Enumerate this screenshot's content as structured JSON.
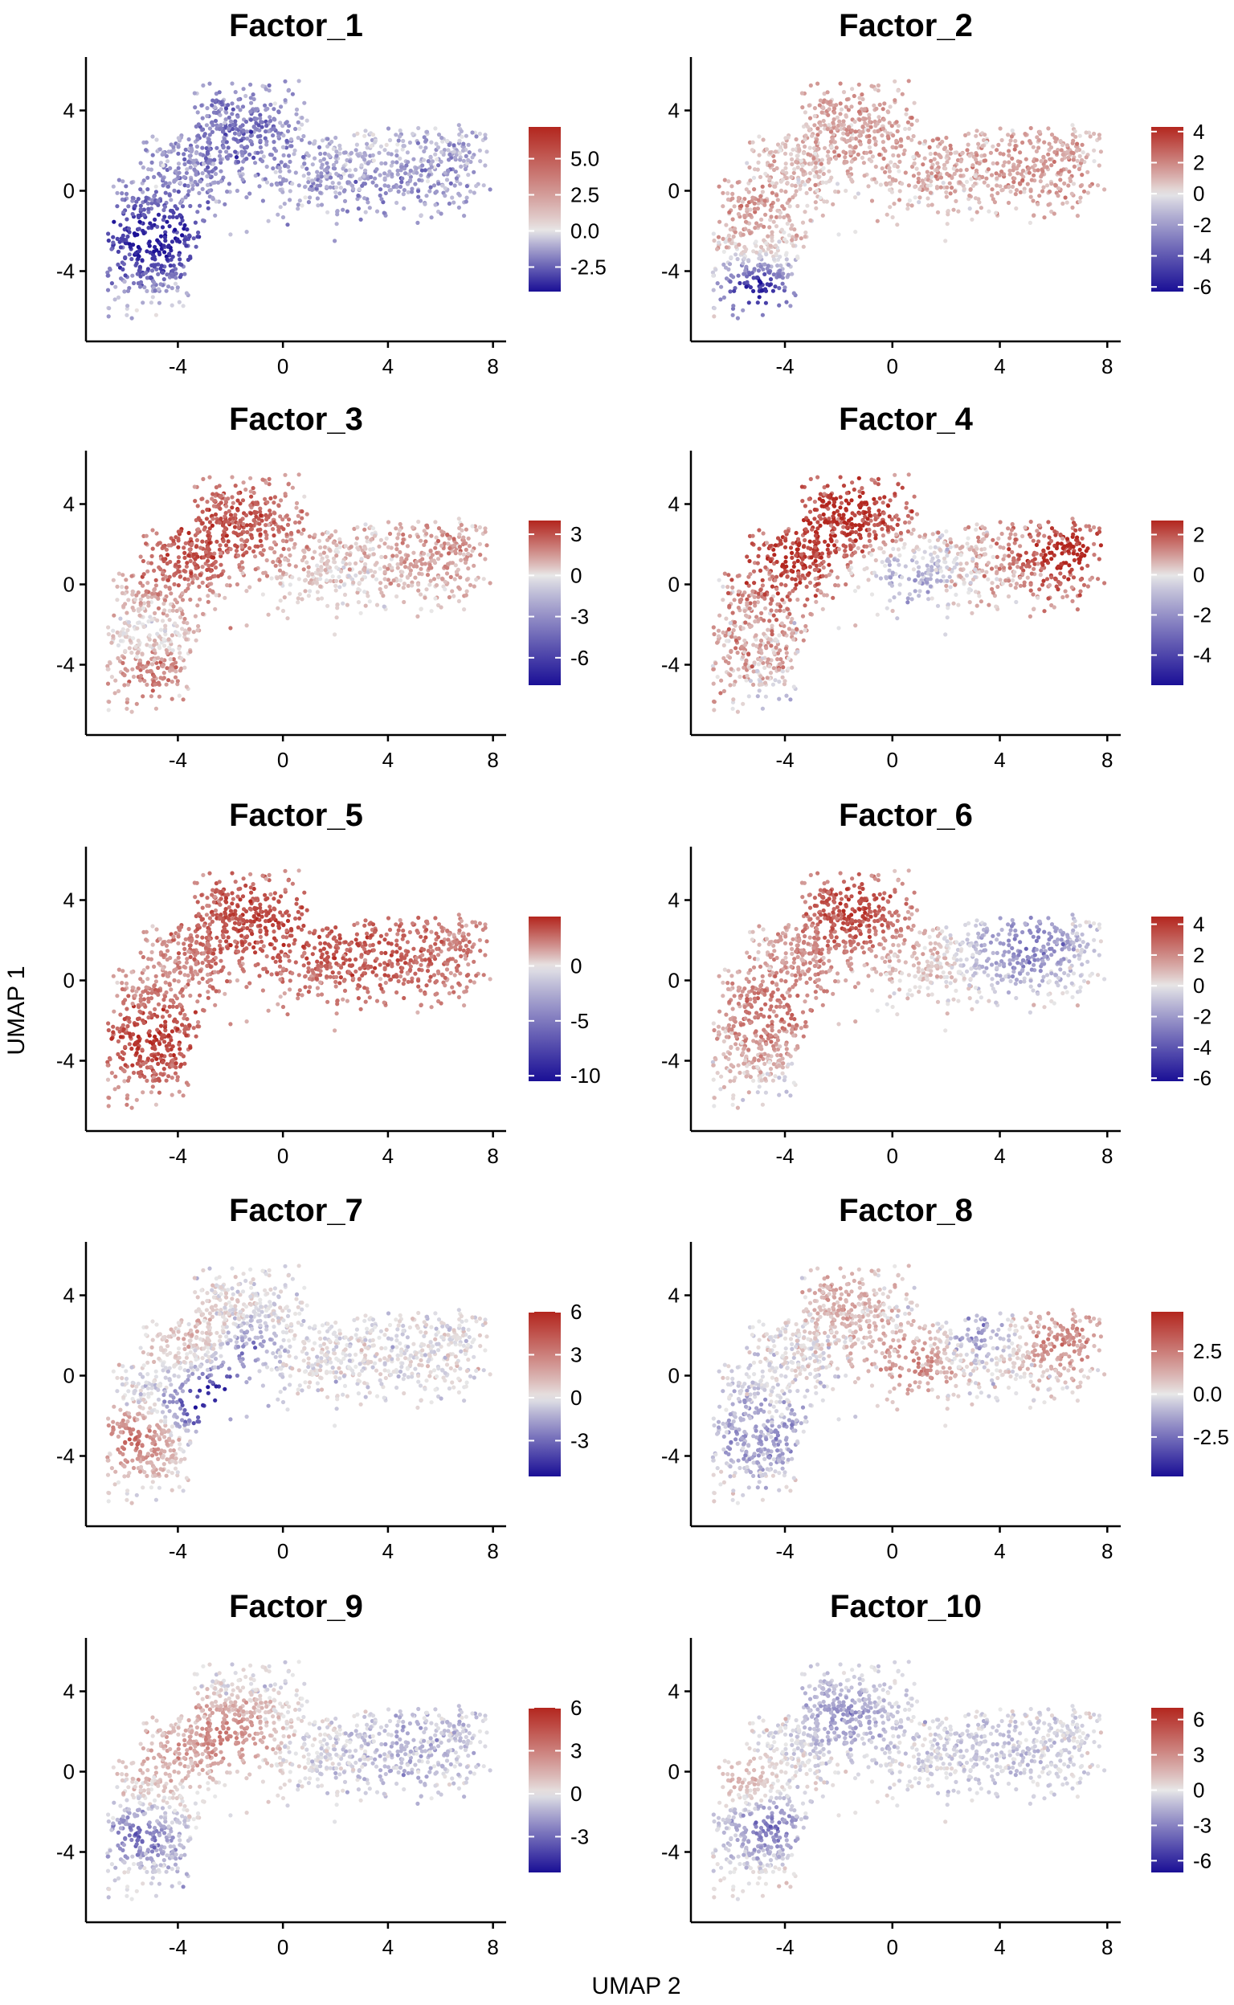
{
  "figure": {
    "xlabel": "UMAP 2",
    "ylabel": "UMAP 1"
  },
  "colorscale": {
    "low": "#1a0f96",
    "mid": "#e8e8e8",
    "high": "#b3261e"
  },
  "chart_data": [
    {
      "type": "scatter",
      "title": "Factor_1",
      "xlabel": "",
      "ylabel": "",
      "x_ticks": [
        -4,
        0,
        4,
        8
      ],
      "y_ticks": [
        4,
        0,
        -4
      ],
      "xlim": [
        -7.5,
        8.5
      ],
      "ylim": [
        -7.5,
        6.5
      ],
      "color_range": [
        -4.2,
        7.2
      ],
      "colorbar_ticks": [
        5.0,
        2.5,
        0.0,
        -2.5
      ],
      "colorbar_labels": [
        "5.0",
        "2.5",
        "0.0",
        "-2.5"
      ],
      "pattern": "f1"
    },
    {
      "type": "scatter",
      "title": "Factor_2",
      "xlabel": "",
      "ylabel": "",
      "x_ticks": [
        -4,
        0,
        4,
        8
      ],
      "y_ticks": [
        4,
        0,
        -4
      ],
      "xlim": [
        -7.5,
        8.5
      ],
      "ylim": [
        -7.5,
        6.5
      ],
      "color_range": [
        -6.3,
        4.3
      ],
      "colorbar_ticks": [
        4,
        2,
        0,
        -2,
        -4,
        -6
      ],
      "colorbar_labels": [
        "4",
        "2",
        "0",
        "-2",
        "-4",
        "-6"
      ],
      "pattern": "f2"
    },
    {
      "type": "scatter",
      "title": "Factor_3",
      "xlabel": "",
      "ylabel": "",
      "x_ticks": [
        -4,
        0,
        4,
        8
      ],
      "y_ticks": [
        4,
        0,
        -4
      ],
      "xlim": [
        -7.5,
        8.5
      ],
      "ylim": [
        -7.5,
        6.5
      ],
      "color_range": [
        -8.0,
        4.0
      ],
      "colorbar_ticks": [
        3,
        0,
        -3,
        -6
      ],
      "colorbar_labels": [
        "3",
        "0",
        "-3",
        "-6"
      ],
      "pattern": "f3"
    },
    {
      "type": "scatter",
      "title": "Factor_4",
      "xlabel": "",
      "ylabel": "",
      "x_ticks": [
        -4,
        0,
        4,
        8
      ],
      "y_ticks": [
        4,
        0,
        -4
      ],
      "xlim": [
        -7.5,
        8.5
      ],
      "ylim": [
        -7.5,
        6.5
      ],
      "color_range": [
        -5.5,
        2.7
      ],
      "colorbar_ticks": [
        2,
        0,
        -2,
        -4
      ],
      "colorbar_labels": [
        "2",
        "0",
        "-2",
        "-4"
      ],
      "pattern": "f4"
    },
    {
      "type": "scatter",
      "title": "Factor_5",
      "xlabel": "",
      "ylabel": "",
      "x_ticks": [
        -4,
        0,
        4,
        8
      ],
      "y_ticks": [
        4,
        0,
        -4
      ],
      "xlim": [
        -7.5,
        8.5
      ],
      "ylim": [
        -7.5,
        6.5
      ],
      "color_range": [
        -10.5,
        4.5
      ],
      "colorbar_ticks": [
        0,
        -5,
        -10
      ],
      "colorbar_labels": [
        "0",
        "-5",
        "-10"
      ],
      "pattern": "f5"
    },
    {
      "type": "scatter",
      "title": "Factor_6",
      "xlabel": "",
      "ylabel": "",
      "x_ticks": [
        -4,
        0,
        4,
        8
      ],
      "y_ticks": [
        4,
        0,
        -4
      ],
      "xlim": [
        -7.5,
        8.5
      ],
      "ylim": [
        -7.5,
        6.5
      ],
      "color_range": [
        -6.2,
        4.5
      ],
      "colorbar_ticks": [
        4,
        2,
        0,
        -2,
        -4,
        -6
      ],
      "colorbar_labels": [
        "4",
        "2",
        "0",
        "-2",
        "-4",
        "-6"
      ],
      "pattern": "f6"
    },
    {
      "type": "scatter",
      "title": "Factor_7",
      "xlabel": "",
      "ylabel": "",
      "x_ticks": [
        -4,
        0,
        4,
        8
      ],
      "y_ticks": [
        4,
        0,
        -4
      ],
      "xlim": [
        -7.5,
        8.5
      ],
      "ylim": [
        -7.5,
        6.5
      ],
      "color_range": [
        -5.5,
        6.0
      ],
      "colorbar_ticks": [
        6,
        3,
        0,
        -3
      ],
      "colorbar_labels": [
        "6",
        "3",
        "0",
        "-3"
      ],
      "pattern": "f7"
    },
    {
      "type": "scatter",
      "title": "Factor_8",
      "xlabel": "",
      "ylabel": "",
      "x_ticks": [
        -4,
        0,
        4,
        8
      ],
      "y_ticks": [
        4,
        0,
        -4
      ],
      "xlim": [
        -7.5,
        8.5
      ],
      "ylim": [
        -7.5,
        6.5
      ],
      "color_range": [
        -4.8,
        4.8
      ],
      "colorbar_ticks": [
        2.5,
        0.0,
        -2.5
      ],
      "colorbar_labels": [
        "2.5",
        "0.0",
        "-2.5"
      ],
      "pattern": "f8"
    },
    {
      "type": "scatter",
      "title": "Factor_9",
      "xlabel": "",
      "ylabel": "",
      "x_ticks": [
        -4,
        0,
        4,
        8
      ],
      "y_ticks": [
        4,
        0,
        -4
      ],
      "xlim": [
        -7.5,
        8.5
      ],
      "ylim": [
        -7.5,
        6.5
      ],
      "color_range": [
        -5.5,
        6.0
      ],
      "colorbar_ticks": [
        6,
        3,
        0,
        -3
      ],
      "colorbar_labels": [
        "6",
        "3",
        "0",
        "-3"
      ],
      "pattern": "f9"
    },
    {
      "type": "scatter",
      "title": "Factor_10",
      "xlabel": "",
      "ylabel": "",
      "x_ticks": [
        -4,
        0,
        4,
        8
      ],
      "y_ticks": [
        4,
        0,
        -4
      ],
      "xlim": [
        -7.5,
        8.5
      ],
      "ylim": [
        -7.5,
        6.5
      ],
      "color_range": [
        -7.0,
        7.0
      ],
      "colorbar_ticks": [
        6,
        3,
        0,
        -3,
        -6
      ],
      "colorbar_labels": [
        "6",
        "3",
        "0",
        "-3",
        "-6"
      ],
      "pattern": "f10"
    }
  ]
}
